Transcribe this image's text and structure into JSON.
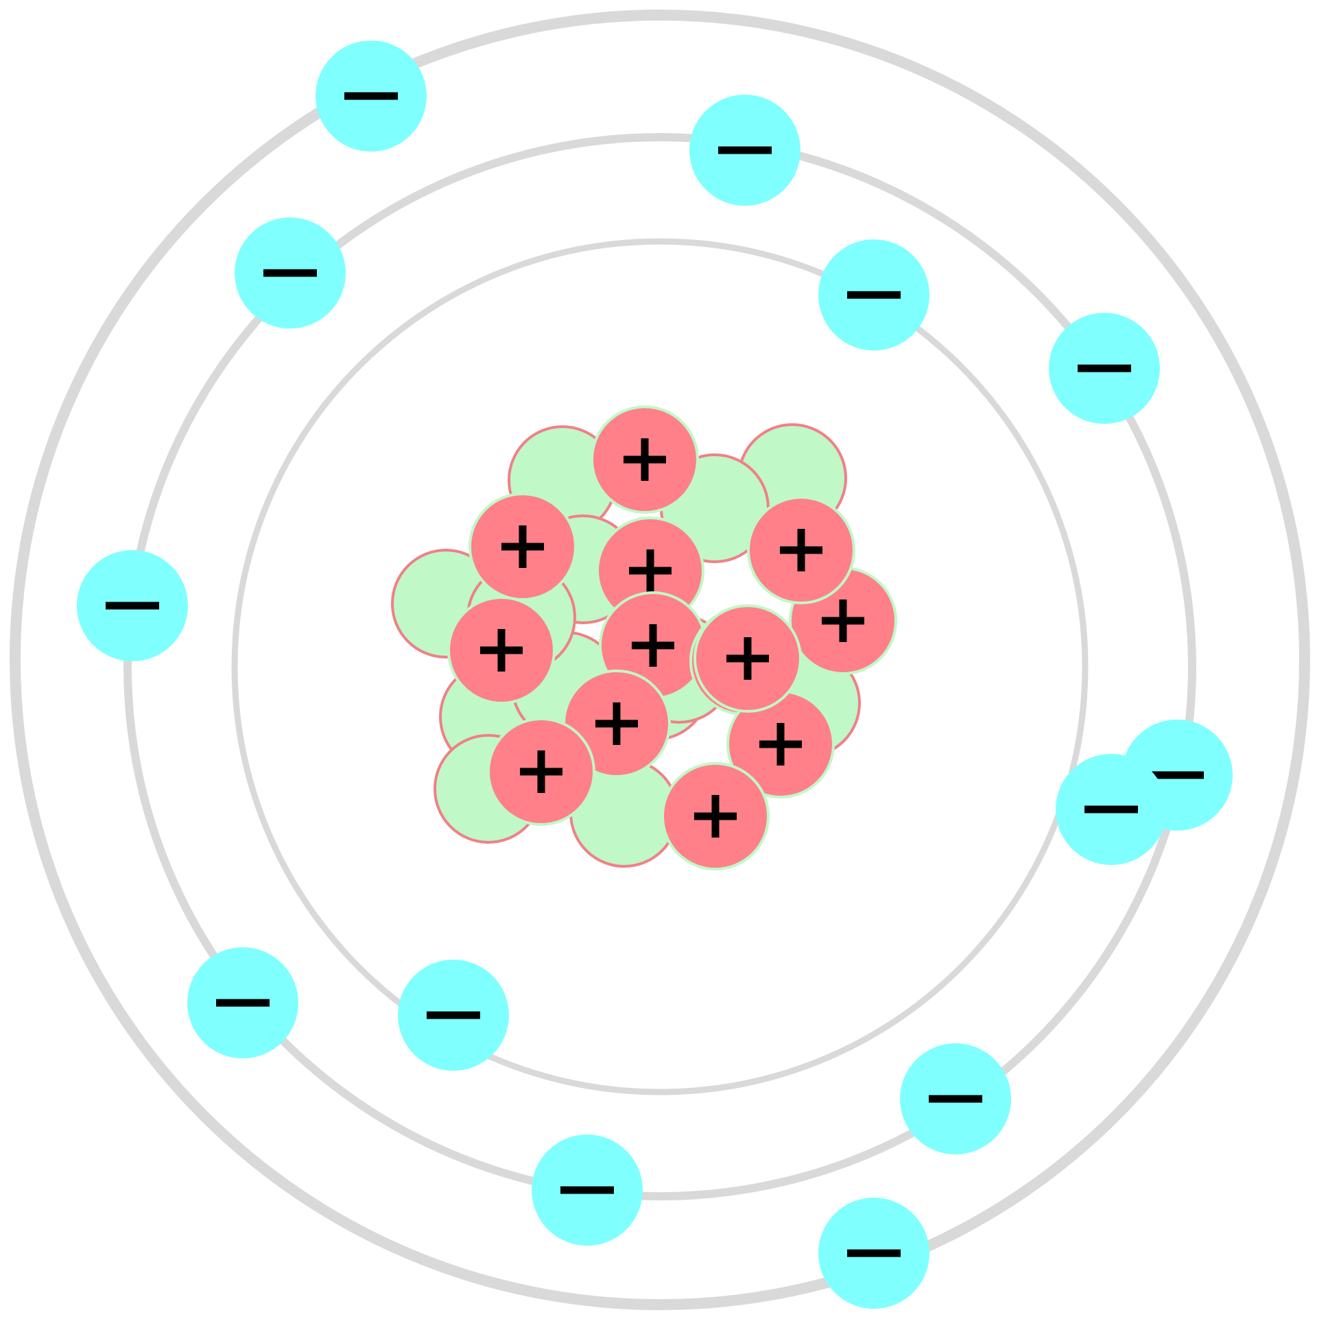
{
  "diagram": {
    "type": "bohr-atom-model",
    "background_color": "#ffffff",
    "orbit_color": "#d9d9d9",
    "counts": {
      "orbits": 3,
      "electrons": 13,
      "protons": 13,
      "neutrons": 14
    },
    "electron": {
      "color": "#80ffff",
      "symbol": "−",
      "icon": "minus-sign-icon"
    },
    "proton": {
      "color": "#ff8088",
      "outline_color": "#c0f8c8",
      "symbol": "+",
      "icon": "plus-sign-icon"
    },
    "neutron": {
      "color": "#c0f8c8",
      "outline_color": "#f08088"
    },
    "shells": [
      {
        "name": "inner",
        "electron_count": 2
      },
      {
        "name": "middle",
        "electron_count": 8
      },
      {
        "name": "outer",
        "electron_count": 3
      }
    ]
  }
}
